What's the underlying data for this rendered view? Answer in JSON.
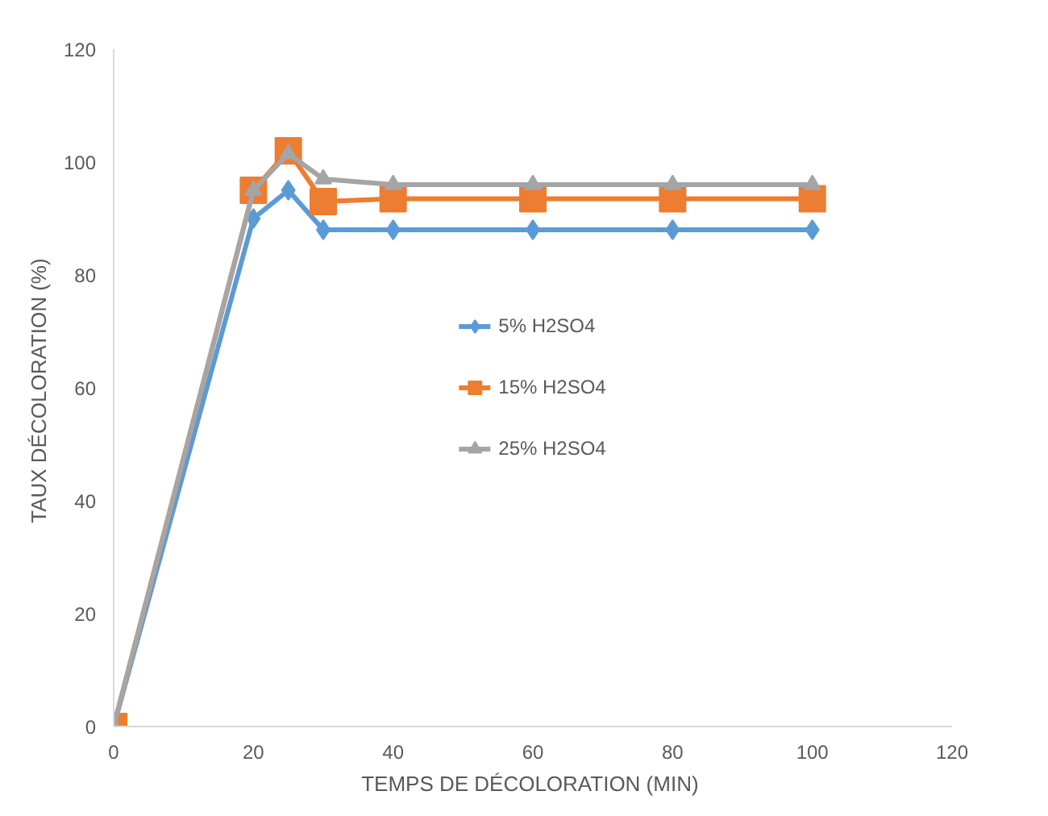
{
  "chart_data": {
    "type": "line",
    "xlabel": "TEMPS DE DÉCOLORATION  (MIN)",
    "ylabel": "TAUX DÉCOLORATION  (%)",
    "x": [
      0,
      20,
      25,
      30,
      40,
      60,
      80,
      100
    ],
    "series": [
      {
        "name": "5% H2SO4",
        "color": "#5b9bd5",
        "marker": "diamond",
        "values": [
          0,
          90,
          95,
          88,
          88,
          88,
          88,
          88
        ]
      },
      {
        "name": "15% H2SO4",
        "color": "#ed7d31",
        "marker": "square",
        "values": [
          0,
          95,
          102,
          93,
          93.5,
          93.5,
          93.5,
          93.5
        ]
      },
      {
        "name": "25% H2SO4",
        "color": "#a5a5a5",
        "marker": "triangle",
        "values": [
          0,
          95,
          101.5,
          97,
          96,
          96,
          96,
          96
        ]
      }
    ],
    "xlim": [
      0,
      120
    ],
    "xticks": [
      0,
      20,
      40,
      60,
      80,
      100,
      120
    ],
    "ylim": [
      0,
      120
    ],
    "yticks": [
      0,
      20,
      40,
      60,
      80,
      100,
      120
    ],
    "grid": false,
    "legend": "center",
    "line_style": "solid"
  }
}
